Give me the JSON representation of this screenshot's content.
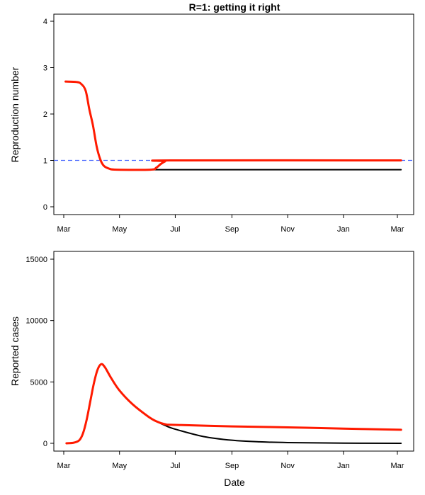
{
  "chart_data": [
    {
      "type": "line",
      "title": "R=1: getting it right",
      "xlabel": "",
      "ylabel": "Reproduction number",
      "xlim": [
        "2020-02-24",
        "2021-03-15"
      ],
      "ylim": [
        0,
        4
      ],
      "x_ticks": [
        "Mar",
        "May",
        "Jul",
        "Sep",
        "Nov",
        "Jan",
        "Mar"
      ],
      "x_tick_dates": [
        "2020-03-01",
        "2020-05-01",
        "2020-07-01",
        "2020-09-01",
        "2020-11-01",
        "2021-01-01",
        "2021-03-01"
      ],
      "y_ticks": [
        0,
        1,
        2,
        3,
        4
      ],
      "grid": false,
      "reference_line": {
        "y": 1,
        "color": "#4d6bff",
        "style": "dashed"
      },
      "series": [
        {
          "color": "#000000",
          "points": [
            [
              "2020-03-03",
              2.7
            ],
            [
              "2020-03-15",
              2.69
            ],
            [
              "2020-03-20",
              2.65
            ],
            [
              "2020-03-25",
              2.5
            ],
            [
              "2020-03-29",
              2.1
            ],
            [
              "2020-04-02",
              1.75
            ],
            [
              "2020-04-06",
              1.3
            ],
            [
              "2020-04-10",
              1.02
            ],
            [
              "2020-04-14",
              0.88
            ],
            [
              "2020-04-20",
              0.82
            ],
            [
              "2020-04-28",
              0.8
            ],
            [
              "2020-06-04",
              0.8
            ],
            [
              "2021-03-05",
              0.8
            ]
          ]
        },
        {
          "color": "#ff1a00",
          "points": [
            [
              "2020-03-03",
              2.7
            ],
            [
              "2020-03-15",
              2.69
            ],
            [
              "2020-03-20",
              2.65
            ],
            [
              "2020-03-25",
              2.5
            ],
            [
              "2020-03-29",
              2.1
            ],
            [
              "2020-04-02",
              1.75
            ],
            [
              "2020-04-06",
              1.3
            ],
            [
              "2020-04-10",
              1.02
            ],
            [
              "2020-04-14",
              0.88
            ],
            [
              "2020-04-20",
              0.82
            ],
            [
              "2020-04-28",
              0.8
            ],
            [
              "2020-06-04",
              0.8
            ],
            [
              "2020-06-10",
              0.84
            ],
            [
              "2020-06-15",
              0.92
            ],
            [
              "2020-06-20",
              0.98
            ],
            [
              "2020-06-26",
              1.0
            ],
            [
              "2021-03-05",
              1.0
            ]
          ]
        }
      ]
    },
    {
      "type": "line",
      "title": "",
      "xlabel": "Date",
      "ylabel": "Reported cases",
      "xlim": [
        "2020-02-24",
        "2021-03-15"
      ],
      "ylim": [
        0,
        15000
      ],
      "x_ticks": [
        "Mar",
        "May",
        "Jul",
        "Sep",
        "Nov",
        "Jan",
        "Mar"
      ],
      "x_tick_dates": [
        "2020-03-01",
        "2020-05-01",
        "2020-07-01",
        "2020-09-01",
        "2020-11-01",
        "2021-01-01",
        "2021-03-01"
      ],
      "y_ticks": [
        0,
        5000,
        10000,
        15000
      ],
      "grid": false,
      "series": [
        {
          "color": "#000000",
          "points": [
            [
              "2020-03-04",
              0
            ],
            [
              "2020-03-12",
              50
            ],
            [
              "2020-03-18",
              250
            ],
            [
              "2020-03-22",
              800
            ],
            [
              "2020-03-26",
              1900
            ],
            [
              "2020-03-30",
              3400
            ],
            [
              "2020-04-03",
              4900
            ],
            [
              "2020-04-07",
              6000
            ],
            [
              "2020-04-11",
              6450
            ],
            [
              "2020-04-15",
              6200
            ],
            [
              "2020-04-22",
              5300
            ],
            [
              "2020-05-01",
              4300
            ],
            [
              "2020-05-15",
              3200
            ],
            [
              "2020-06-01",
              2200
            ],
            [
              "2020-06-10",
              1800
            ],
            [
              "2020-06-20",
              1450
            ],
            [
              "2020-07-01",
              1150
            ],
            [
              "2020-08-01",
              550
            ],
            [
              "2020-09-01",
              250
            ],
            [
              "2020-10-01",
              120
            ],
            [
              "2020-11-01",
              60
            ],
            [
              "2021-01-01",
              15
            ],
            [
              "2021-03-05",
              0
            ]
          ]
        },
        {
          "color": "#ff1a00",
          "points": [
            [
              "2020-03-04",
              0
            ],
            [
              "2020-03-12",
              50
            ],
            [
              "2020-03-18",
              250
            ],
            [
              "2020-03-22",
              800
            ],
            [
              "2020-03-26",
              1900
            ],
            [
              "2020-03-30",
              3400
            ],
            [
              "2020-04-03",
              4900
            ],
            [
              "2020-04-07",
              6000
            ],
            [
              "2020-04-11",
              6450
            ],
            [
              "2020-04-15",
              6200
            ],
            [
              "2020-04-22",
              5300
            ],
            [
              "2020-05-01",
              4300
            ],
            [
              "2020-05-15",
              3200
            ],
            [
              "2020-06-01",
              2200
            ],
            [
              "2020-06-10",
              1800
            ],
            [
              "2020-06-20",
              1550
            ],
            [
              "2020-07-01",
              1500
            ],
            [
              "2020-09-01",
              1380
            ],
            [
              "2020-11-01",
              1300
            ],
            [
              "2021-01-01",
              1200
            ],
            [
              "2021-03-05",
              1100
            ]
          ]
        }
      ]
    }
  ]
}
